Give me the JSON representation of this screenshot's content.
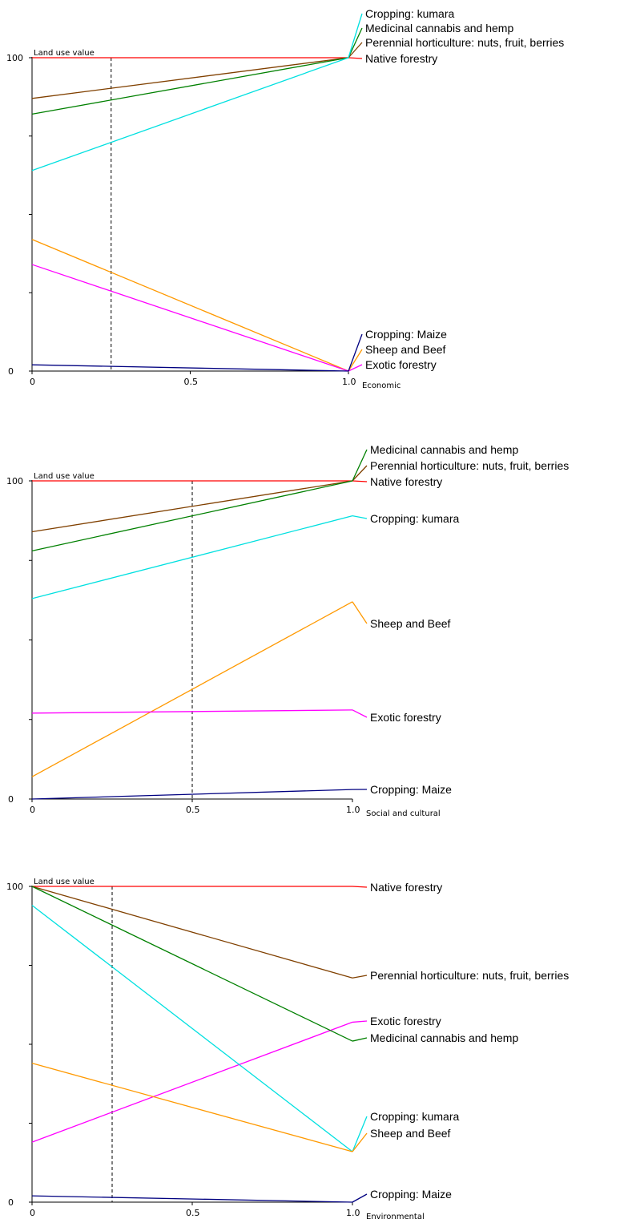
{
  "chart_data": [
    {
      "type": "line",
      "xlabel": "Economic",
      "ylabel": "Land use value",
      "xlim": [
        0,
        1
      ],
      "ylim": [
        0,
        100
      ],
      "x_ticks": [
        "0",
        "0.5",
        "1.0"
      ],
      "y_ticks": [
        "0",
        "100"
      ],
      "marker_x": 0.25,
      "series": [
        {
          "name": "Native forestry",
          "color": "#ff0000",
          "x": [
            0,
            1
          ],
          "y": [
            100,
            100
          ],
          "label_order": 3
        },
        {
          "name": "Perennial horticulture: nuts, fruit, berries",
          "color": "#804000",
          "x": [
            0,
            1
          ],
          "y": [
            87,
            100
          ],
          "label_order": 2
        },
        {
          "name": "Medicinal cannabis and hemp",
          "color": "#008000",
          "x": [
            0,
            1
          ],
          "y": [
            82,
            100
          ],
          "label_order": 1
        },
        {
          "name": "Cropping: kumara",
          "color": "#00e0e0",
          "x": [
            0,
            1
          ],
          "y": [
            64,
            100
          ],
          "label_order": 0
        },
        {
          "name": "Sheep and Beef",
          "color": "#ff9900",
          "x": [
            0,
            1
          ],
          "y": [
            42,
            0
          ],
          "label_order": 5
        },
        {
          "name": "Exotic forestry",
          "color": "#ff00ff",
          "x": [
            0,
            1
          ],
          "y": [
            34,
            0
          ],
          "label_order": 6
        },
        {
          "name": "Cropping: Maize",
          "color": "#000080",
          "x": [
            0,
            1
          ],
          "y": [
            2,
            0
          ],
          "label_order": 4
        }
      ]
    },
    {
      "type": "line",
      "xlabel": "Social and cultural",
      "ylabel": "Land use value",
      "xlim": [
        0,
        1
      ],
      "ylim": [
        0,
        100
      ],
      "x_ticks": [
        "0",
        "0.5",
        "1.0"
      ],
      "y_ticks": [
        "0",
        "100"
      ],
      "marker_x": 0.5,
      "series": [
        {
          "name": "Native forestry",
          "color": "#ff0000",
          "x": [
            0,
            1
          ],
          "y": [
            100,
            100
          ],
          "label_order": 2
        },
        {
          "name": "Perennial horticulture: nuts, fruit, berries",
          "color": "#804000",
          "x": [
            0,
            1
          ],
          "y": [
            84,
            100
          ],
          "label_order": 1
        },
        {
          "name": "Medicinal cannabis and hemp",
          "color": "#008000",
          "x": [
            0,
            1
          ],
          "y": [
            78,
            100
          ],
          "label_order": 0
        },
        {
          "name": "Cropping: kumara",
          "color": "#00e0e0",
          "x": [
            0,
            1
          ],
          "y": [
            63,
            89
          ],
          "label_order": 3
        },
        {
          "name": "Sheep and Beef",
          "color": "#ff9900",
          "x": [
            0,
            1
          ],
          "y": [
            7,
            62
          ],
          "label_order": 4
        },
        {
          "name": "Exotic forestry",
          "color": "#ff00ff",
          "x": [
            0,
            1
          ],
          "y": [
            27,
            28
          ],
          "label_order": 5
        },
        {
          "name": "Cropping: Maize",
          "color": "#000080",
          "x": [
            0,
            1
          ],
          "y": [
            0,
            3
          ],
          "label_order": 6
        }
      ]
    },
    {
      "type": "line",
      "xlabel": "Environmental",
      "ylabel": "Land use value",
      "xlim": [
        0,
        1
      ],
      "ylim": [
        0,
        100
      ],
      "x_ticks": [
        "0",
        "0.5",
        "1.0"
      ],
      "y_ticks": [
        "0",
        "100"
      ],
      "marker_x": 0.25,
      "series": [
        {
          "name": "Native forestry",
          "color": "#ff0000",
          "x": [
            0,
            1
          ],
          "y": [
            100,
            100
          ],
          "label_order": 0
        },
        {
          "name": "Perennial horticulture: nuts, fruit, berries",
          "color": "#804000",
          "x": [
            0,
            1
          ],
          "y": [
            100,
            71
          ],
          "label_order": 1
        },
        {
          "name": "Exotic forestry",
          "color": "#ff00ff",
          "x": [
            0,
            1
          ],
          "y": [
            19,
            57
          ],
          "label_order": 2
        },
        {
          "name": "Medicinal cannabis and hemp",
          "color": "#008000",
          "x": [
            0,
            1
          ],
          "y": [
            100,
            51
          ],
          "label_order": 3
        },
        {
          "name": "Cropping: kumara",
          "color": "#00e0e0",
          "x": [
            0,
            1
          ],
          "y": [
            94,
            16
          ],
          "label_order": 4
        },
        {
          "name": "Sheep and Beef",
          "color": "#ff9900",
          "x": [
            0,
            1
          ],
          "y": [
            44,
            16
          ],
          "label_order": 5
        },
        {
          "name": "Cropping: Maize",
          "color": "#000080",
          "x": [
            0,
            1
          ],
          "y": [
            2,
            0
          ],
          "label_order": 6
        }
      ]
    }
  ]
}
